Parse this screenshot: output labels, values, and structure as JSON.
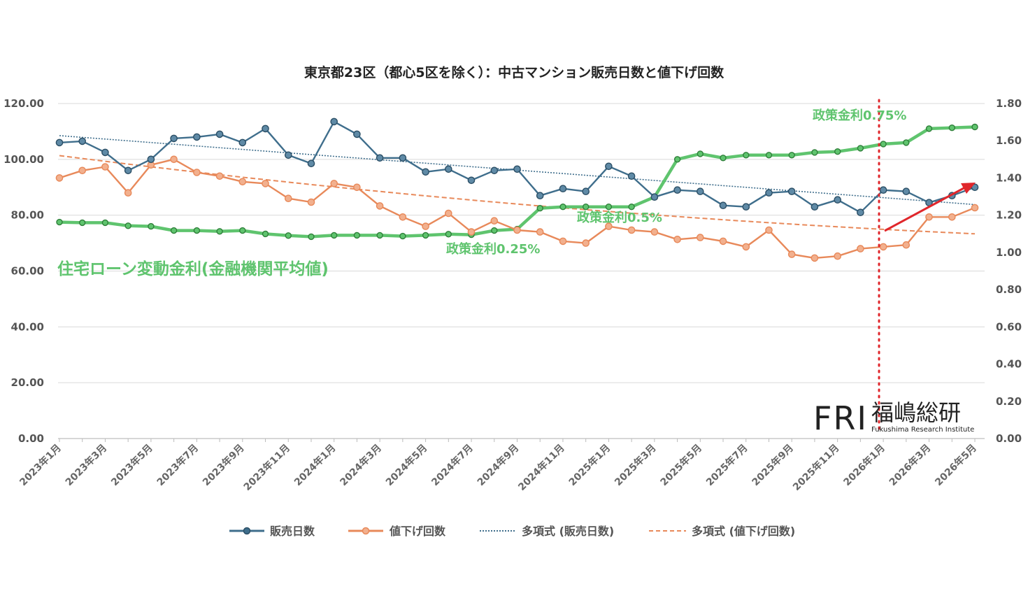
{
  "chart_data": {
    "type": "line",
    "title": "東京都23区（都心5区を除く）：中古マンション販売日数と値下げ回数",
    "xlabel": "",
    "ylabel": "",
    "ylim": [
      0,
      120
    ],
    "ylim_right": [
      0,
      1.8
    ],
    "yticks_left": [
      "0.00",
      "20.00",
      "40.00",
      "60.00",
      "80.00",
      "100.00",
      "120.00"
    ],
    "yticks_right": [
      "0.00",
      "0.20",
      "0.40",
      "0.60",
      "0.80",
      "1.00",
      "1.20",
      "1.40",
      "1.60",
      "1.80"
    ],
    "x_tick_labels": [
      "2023年1月",
      "2023年3月",
      "2023年5月",
      "2023年7月",
      "2023年9月",
      "2023年11月",
      "2024年1月",
      "2024年3月",
      "2024年5月",
      "2024年7月",
      "2024年9月",
      "2024年11月",
      "2025年1月",
      "2025年3月",
      "2025年5月",
      "2025年7月",
      "2025年9月",
      "2025年11月",
      "2026年1月",
      "2026年3月",
      "2026年5月"
    ],
    "grid": true,
    "legend_position": "bottom",
    "series": [
      {
        "name": "販売日数",
        "axis": "left",
        "color": "#3f6e8c",
        "values": [
          106.0,
          106.5,
          102.5,
          96.0,
          100.0,
          107.5,
          108.0,
          109.0,
          106.0,
          111.0,
          101.5,
          98.5,
          113.5,
          109.0,
          100.5,
          100.5,
          95.5,
          96.5,
          92.5,
          96.0,
          96.5,
          87.0,
          89.5,
          88.5,
          97.5,
          94.0,
          86.5,
          89.0,
          88.5,
          83.5,
          83.0,
          88.0,
          88.5,
          83.0,
          85.5,
          81.0,
          89.0,
          88.5,
          84.5,
          87.0,
          90.0
        ]
      },
      {
        "name": "値下げ回数",
        "axis": "right",
        "color": "#e8895a",
        "values": [
          1.4,
          1.44,
          1.46,
          1.32,
          1.47,
          1.5,
          1.43,
          1.41,
          1.38,
          1.37,
          1.29,
          1.27,
          1.37,
          1.35,
          1.25,
          1.19,
          1.14,
          1.21,
          1.11,
          1.17,
          1.12,
          1.11,
          1.06,
          1.05,
          1.14,
          1.12,
          1.11,
          1.07,
          1.08,
          1.06,
          1.03,
          1.12,
          0.99,
          0.97,
          0.98,
          1.02,
          1.03,
          1.04,
          1.19,
          1.19,
          1.24
        ]
      },
      {
        "name": "住宅ローン変動金利(金融機関平均値)",
        "axis": "left",
        "color": "#5fc46e",
        "values": [
          77.5,
          77.3,
          77.3,
          76.2,
          76.0,
          74.5,
          74.5,
          74.2,
          74.5,
          73.3,
          72.7,
          72.3,
          72.8,
          72.8,
          72.8,
          72.5,
          72.8,
          73.2,
          73.0,
          74.5,
          75.0,
          82.5,
          83.0,
          83.0,
          83.0,
          83.0,
          86.5,
          100.0,
          102.0,
          100.5,
          101.5,
          101.5,
          101.5,
          102.5,
          102.8,
          104.0,
          105.5,
          106.0,
          111.0,
          111.3,
          111.6
        ]
      },
      {
        "name": "多項式 (販売日数)",
        "axis": "left",
        "color": "#3f6e8c",
        "trend": [
          108.5,
          83.8
        ]
      },
      {
        "name": "多項式 (値下げ回数)",
        "axis": "right",
        "color": "#e8895a",
        "trend": [
          1.52,
          1.1
        ]
      }
    ],
    "annotations": [
      {
        "text": "住宅ローン変動金利(金融機関平均値)"
      },
      {
        "text": "政策金利0.25%"
      },
      {
        "text": "政策金利0.5%"
      },
      {
        "text": "政策金利0.75%"
      }
    ]
  },
  "legend": {
    "days": "販売日数",
    "cuts": "値下げ回数",
    "days_trend": "多項式 (販売日数)",
    "cuts_trend": "多項式 (値下げ回数)"
  },
  "logo": {
    "mark": "FRI",
    "name_jp": "福嶋総研",
    "name_en": "Fukushima Research Institute"
  },
  "colors": {
    "days": "#3f6e8c",
    "cuts": "#e8895a",
    "rate": "#5fc46e",
    "marker_line": "#e0262b",
    "grid": "#d9d9d9"
  }
}
